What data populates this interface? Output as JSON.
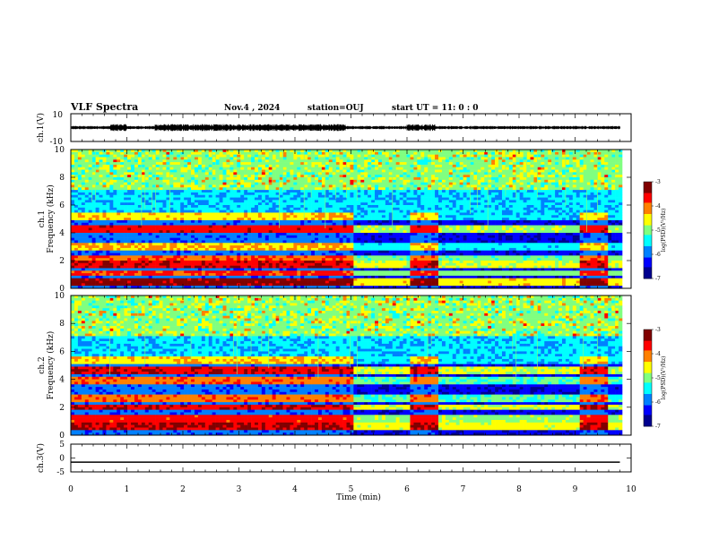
{
  "header": {
    "title": "VLF Spectra",
    "date": "Nov.4 , 2024",
    "station": "station=OUJ",
    "start": "start UT = 11: 0 : 0"
  },
  "colors": {
    "colormap": [
      "#00008f",
      "#0000ff",
      "#0080ff",
      "#00ffff",
      "#80ff80",
      "#ffff00",
      "#ff8000",
      "#ff0000",
      "#800000"
    ],
    "waveform": "#000000"
  },
  "chart_data": [
    {
      "type": "line",
      "name": "ch1-waveform",
      "ylabel": "ch.1(V)",
      "ylim": [
        -10,
        10
      ],
      "yticks": [
        "10",
        "-10"
      ],
      "xlim": [
        0,
        10
      ],
      "burst_intervals_min": [
        [
          0.7,
          1.0
        ],
        [
          1.5,
          4.9
        ],
        [
          6.0,
          6.5
        ]
      ],
      "envelope_amplitude_V": {
        "quiet": 1.2,
        "burst": 2.5
      }
    },
    {
      "type": "heatmap",
      "name": "ch1-spectrogram",
      "ylabel_top": "ch.1",
      "ylabel": "Frequency (kHz)",
      "ylim": [
        0,
        10
      ],
      "yticks": [
        "0",
        "2",
        "4",
        "6",
        "8",
        "10"
      ],
      "xlim": [
        0,
        10
      ],
      "colorbar": {
        "label": "log(PSD)(V²/Hz)",
        "range": [
          -7,
          -3
        ],
        "ticks": [
          "-3",
          "-4",
          "-5",
          "-6",
          "-7"
        ]
      },
      "enhanced_intervals_min": [
        [
          0.0,
          5.0
        ],
        [
          6.0,
          6.5
        ],
        [
          9.0,
          9.5
        ]
      ],
      "bands_khz": [
        {
          "f": 0.5,
          "level": -3.5
        },
        {
          "f": 1.1,
          "level": -4.0
        },
        {
          "f": 1.7,
          "level": -3.7
        },
        {
          "f": 2.2,
          "level": -4.1
        },
        {
          "f": 3.0,
          "level": -4.5
        },
        {
          "f": 4.3,
          "level": -3.8
        },
        {
          "f": 5.2,
          "level": -4.6
        }
      ]
    },
    {
      "type": "heatmap",
      "name": "ch2-spectrogram",
      "ylabel_top": "ch.2",
      "ylabel": "Frequency (kHz)",
      "ylim": [
        0,
        10
      ],
      "yticks": [
        "0",
        "2",
        "4",
        "6",
        "8",
        "10"
      ],
      "xlim": [
        0,
        10
      ],
      "colorbar": {
        "label": "log(PSD)(V²/Hz)",
        "range": [
          -7,
          -3
        ],
        "ticks": [
          "-3",
          "-4",
          "-5",
          "-6",
          "-7"
        ]
      },
      "enhanced_intervals_min": [
        [
          0.0,
          5.0
        ],
        [
          6.0,
          6.5
        ],
        [
          9.0,
          9.5
        ]
      ],
      "bands_khz": [
        {
          "f": 0.6,
          "level": -3.6
        },
        {
          "f": 1.2,
          "level": -3.9
        },
        {
          "f": 2.0,
          "level": -3.7
        },
        {
          "f": 2.6,
          "level": -4.2
        },
        {
          "f": 3.9,
          "level": -4.2
        },
        {
          "f": 4.6,
          "level": -3.7
        },
        {
          "f": 5.3,
          "level": -4.6
        }
      ]
    },
    {
      "type": "line",
      "name": "ch3-trace",
      "ylabel": "ch.3(V)",
      "ylim": [
        -5,
        5
      ],
      "yticks": [
        "5",
        "0",
        "-5"
      ],
      "x": [
        0,
        9.8
      ],
      "y": [
        -1.5,
        -1.5
      ]
    }
  ],
  "xaxis": {
    "label": "Time (min)",
    "ticks": [
      "0",
      "1",
      "2",
      "3",
      "4",
      "5",
      "6",
      "7",
      "8",
      "9",
      "10"
    ],
    "range": [
      0,
      10
    ]
  }
}
